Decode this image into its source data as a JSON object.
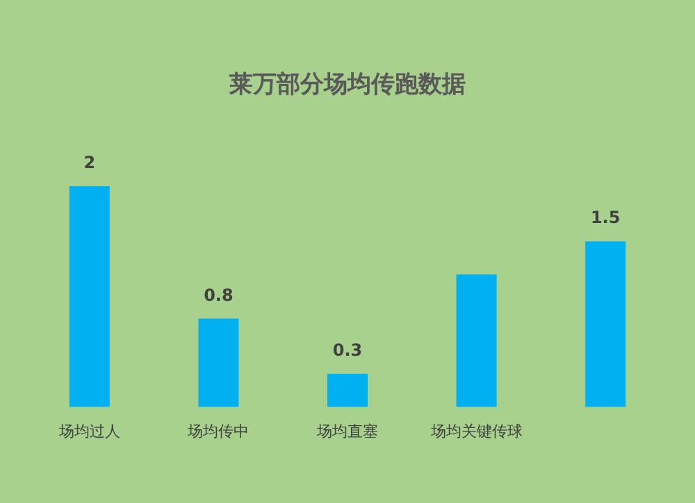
{
  "chart_data": {
    "type": "bar",
    "title": "莱万部分场均传跑数据",
    "categories": [
      "场均过人",
      "场均传中",
      "场均直塞",
      "场均关键传球",
      null
    ],
    "values": [
      2,
      0.8,
      0.3,
      1.2,
      1.5
    ],
    "value_labels": [
      "2",
      "0.8",
      "0.3",
      null,
      "1.5"
    ],
    "color": "#00b0f0"
  }
}
